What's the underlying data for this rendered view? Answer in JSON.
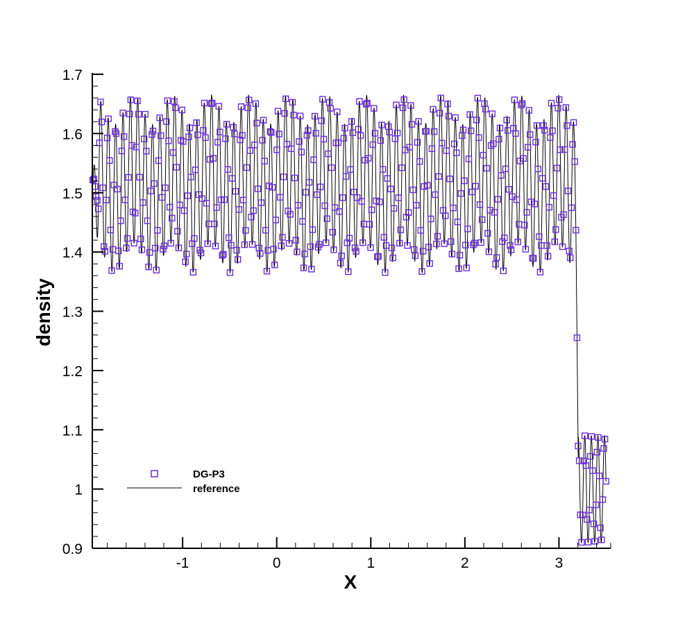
{
  "chart_data": {
    "type": "scatter",
    "xlabel": "X",
    "ylabel": "density",
    "xlim": [
      -1.96,
      3.55
    ],
    "ylim": [
      0.9,
      1.7
    ],
    "x_ticks": [
      -1,
      0,
      1,
      2,
      3
    ],
    "x_tick_labels": [
      "-1",
      "0",
      "1",
      "2",
      "3"
    ],
    "y_ticks": [
      0.9,
      1.0,
      1.1,
      1.2,
      1.3,
      1.4,
      1.5,
      1.6,
      1.7
    ],
    "y_tick_labels": [
      "0.9",
      "1",
      "1.1",
      "1.2",
      "1.3",
      "1.4",
      "1.5",
      "1.6",
      "1.7"
    ],
    "grid": false,
    "legend_position": "bottom-left",
    "series": [
      {
        "name": "DG-P3",
        "kind": "markers",
        "marker": "square",
        "color": "#6a2bd9",
        "description": "oscillatory density field between about 1.36 and 1.67 for x < 3.18, shock at x ≈ 3.2, then small oscillations between 0.90 and 1.10 up to x ≈ 3.5",
        "x_range": [
          -1.96,
          3.5
        ],
        "amplitude_pre_shock": [
          1.36,
          1.67
        ],
        "shock_x": 3.2,
        "amplitude_post_shock": [
          0.9,
          1.1
        ]
      },
      {
        "name": "reference",
        "kind": "line",
        "color": "#000000",
        "x_range": [
          -1.96,
          3.5
        ]
      }
    ]
  }
}
